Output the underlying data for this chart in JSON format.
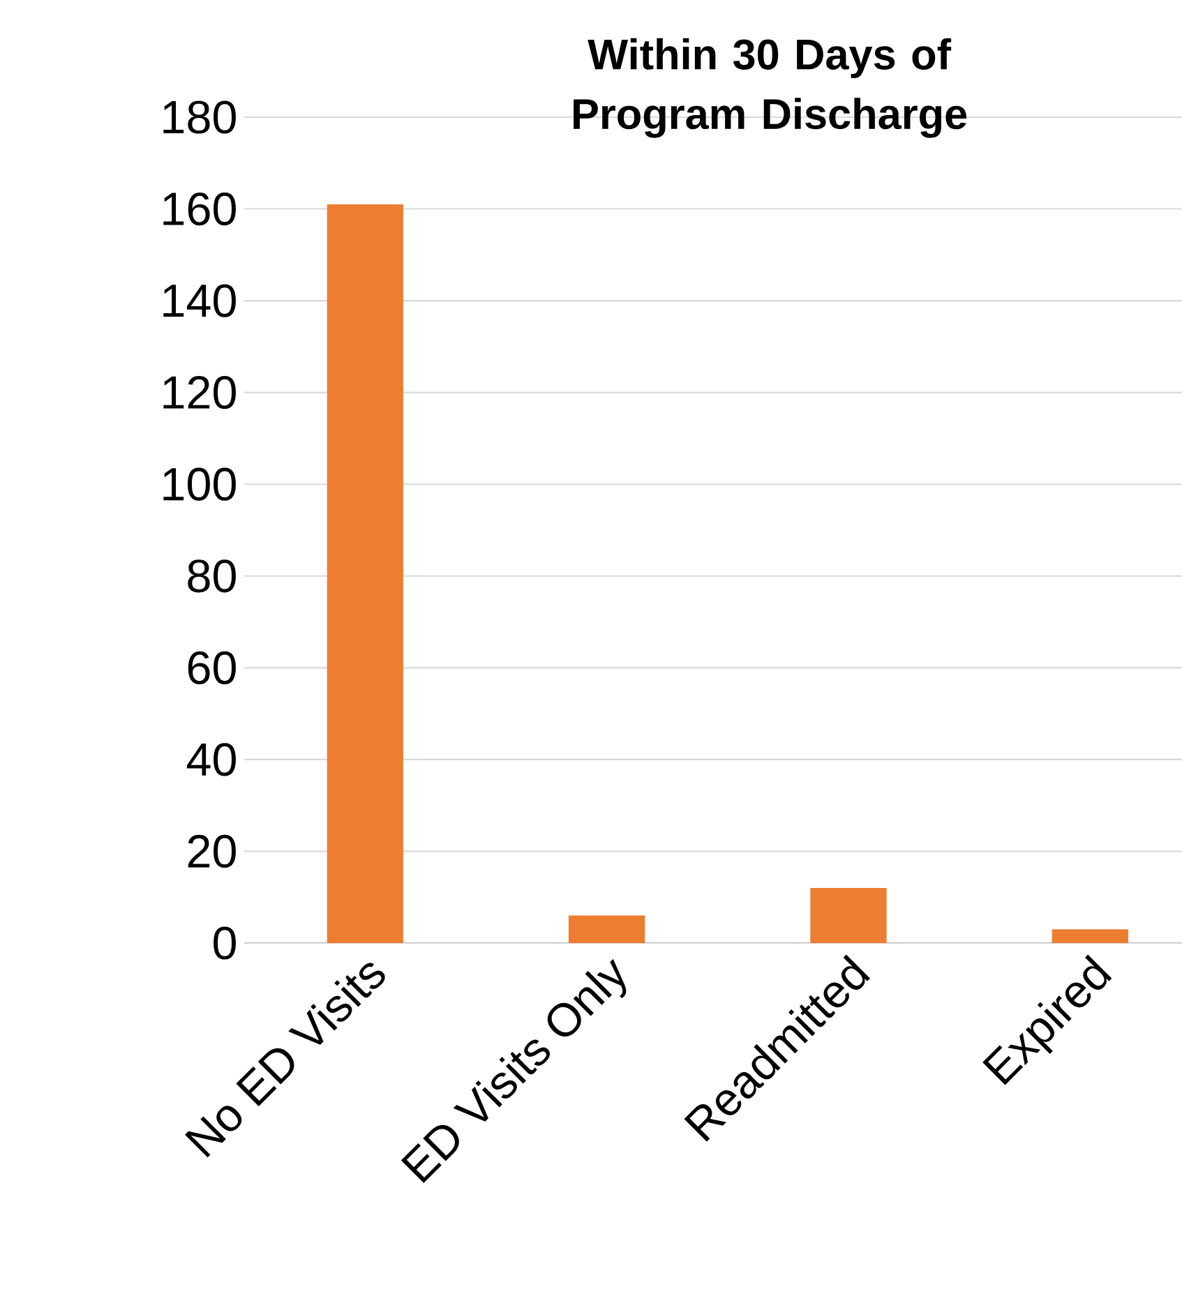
{
  "chart_data": {
    "type": "bar",
    "title": "Within 30 Days of Program Discharge",
    "categories": [
      "No ED Visits",
      "ED Visits Only",
      "Readmitted",
      "Expired"
    ],
    "values": [
      161,
      6,
      12,
      3
    ],
    "color": "#ed7d31",
    "ylim": [
      0,
      180
    ],
    "yticks": [
      0,
      20,
      40,
      60,
      80,
      100,
      120,
      140,
      160,
      180
    ],
    "grid": "y"
  }
}
